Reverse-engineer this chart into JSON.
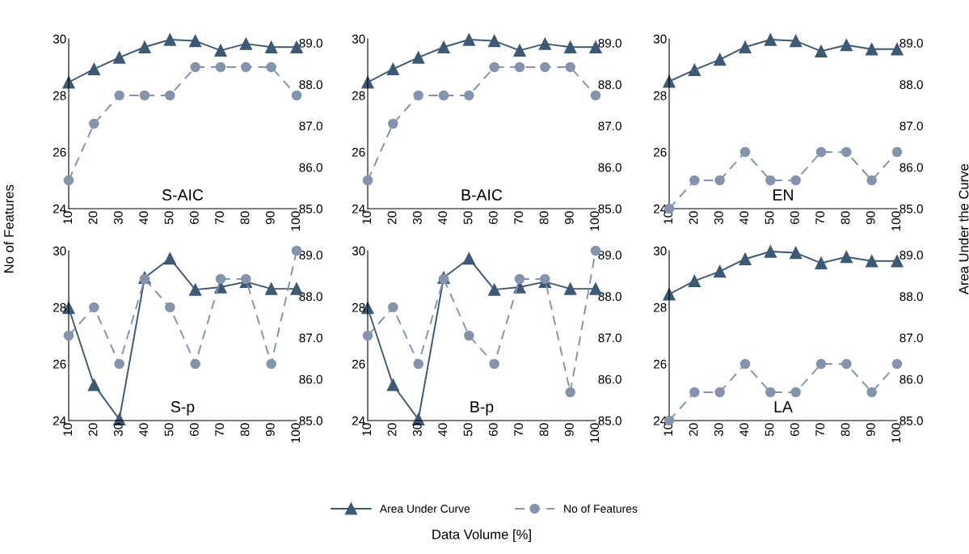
{
  "chart_data": [
    {
      "type": "line",
      "categories": [
        "10",
        "20",
        "30",
        "40",
        "50",
        "60",
        "70",
        "80",
        "90",
        "100"
      ],
      "ylim": [
        24,
        30
      ],
      "yticks": [
        24,
        26,
        28,
        30
      ],
      "y2lim": [
        85.0,
        89.1
      ],
      "y2ticks": [
        {
          "value": 85,
          "label": "85.0"
        },
        {
          "value": 86,
          "label": "86.0"
        },
        {
          "value": 87,
          "label": "87.0"
        },
        {
          "value": 88,
          "label": "88.0"
        },
        {
          "value": 89,
          "label": "89.0"
        }
      ],
      "annotations": [
        "S-AIC"
      ],
      "ylabel": "No of Features",
      "legend": "bottom",
      "grid": false,
      "series": [
        {
          "name": "Area Under Curve",
          "color": "#3d5a75",
          "axis": "y2",
          "marker": "triangle",
          "line_style": "solid",
          "values": [
            88.05,
            88.37,
            88.65,
            88.9,
            89.08,
            89.05,
            88.82,
            88.98,
            88.9,
            88.9
          ]
        },
        {
          "name": "No of Features",
          "color": "#8494ad",
          "marker": "circle",
          "line_style": "dashed",
          "values": [
            25,
            27,
            28,
            28,
            28,
            29,
            29,
            29,
            29,
            28
          ]
        }
      ]
    },
    {
      "type": "line",
      "categories": [
        "10",
        "20",
        "30",
        "40",
        "50",
        "60",
        "70",
        "80",
        "90",
        "100"
      ],
      "ylim": [
        24,
        30
      ],
      "yticks": [
        24,
        26,
        28,
        30
      ],
      "y2lim": [
        85.0,
        89.1
      ],
      "y2ticks": [
        {
          "value": 85,
          "label": "85.0"
        },
        {
          "value": 86,
          "label": "86.0"
        },
        {
          "value": 87,
          "label": "87.0"
        },
        {
          "value": 88,
          "label": "88.0"
        },
        {
          "value": 89,
          "label": "89.0"
        }
      ],
      "annotations": [
        "B-AIC"
      ],
      "grid": false,
      "series": [
        {
          "color": "#3d5a75",
          "axis": "y2",
          "marker": "triangle",
          "line_style": "solid",
          "values": [
            88.05,
            88.37,
            88.65,
            88.9,
            89.08,
            89.05,
            88.82,
            88.98,
            88.9,
            88.9
          ]
        },
        {
          "color": "#8494ad",
          "marker": "circle",
          "line_style": "dashed",
          "values": [
            25,
            27,
            28,
            28,
            28,
            29,
            29,
            29,
            29,
            28
          ]
        }
      ]
    },
    {
      "type": "line",
      "categories": [
        "10",
        "20",
        "30",
        "40",
        "50",
        "60",
        "70",
        "80",
        "90",
        "100"
      ],
      "ylim": [
        24,
        30
      ],
      "yticks": [
        24,
        26,
        28,
        30
      ],
      "y2lim": [
        85.0,
        89.1
      ],
      "y2ticks": [
        {
          "value": 85,
          "label": "85.0"
        },
        {
          "value": 86,
          "label": "86.0"
        },
        {
          "value": 87,
          "label": "87.0"
        },
        {
          "value": 88,
          "label": "88.0"
        },
        {
          "value": 89,
          "label": "89.0"
        }
      ],
      "annotations": [
        "EN"
      ],
      "y2label": "Area Under the Curve",
      "grid": false,
      "series": [
        {
          "color": "#3d5a75",
          "axis": "y2",
          "marker": "triangle",
          "line_style": "solid",
          "values": [
            88.07,
            88.35,
            88.6,
            88.9,
            89.08,
            89.05,
            88.8,
            88.95,
            88.85,
            88.85
          ]
        },
        {
          "color": "#8494ad",
          "marker": "circle",
          "line_style": "dashed",
          "values": [
            24,
            25,
            25,
            26,
            25,
            25,
            26,
            26,
            25,
            26
          ]
        }
      ]
    },
    {
      "type": "line",
      "categories": [
        "10",
        "20",
        "30",
        "40",
        "50",
        "60",
        "70",
        "80",
        "90",
        "100"
      ],
      "ylim": [
        24,
        30
      ],
      "yticks": [
        24,
        26,
        28,
        30
      ],
      "y2lim": [
        85.0,
        89.1
      ],
      "y2ticks": [
        {
          "value": 85,
          "label": "85.0"
        },
        {
          "value": 86,
          "label": "86.0"
        },
        {
          "value": 87,
          "label": "87.0"
        },
        {
          "value": 88,
          "label": "88.0"
        },
        {
          "value": 89,
          "label": "89.0"
        }
      ],
      "annotations": [
        "S-p"
      ],
      "grid": false,
      "series": [
        {
          "color": "#3d5a75",
          "axis": "y2",
          "marker": "triangle",
          "line_style": "solid",
          "values": [
            87.72,
            85.86,
            85.03,
            88.45,
            88.91,
            88.16,
            88.22,
            88.35,
            88.18,
            88.18
          ]
        },
        {
          "color": "#8494ad",
          "marker": "circle",
          "line_style": "dashed",
          "values": [
            27,
            28,
            26,
            29,
            28,
            26,
            29,
            29,
            26,
            30
          ]
        }
      ]
    },
    {
      "type": "line",
      "categories": [
        "10",
        "20",
        "30",
        "40",
        "50",
        "60",
        "70",
        "80",
        "90",
        "100"
      ],
      "ylim": [
        24,
        30
      ],
      "yticks": [
        24,
        26,
        28,
        30
      ],
      "y2lim": [
        85.0,
        89.1
      ],
      "y2ticks": [
        {
          "value": 85,
          "label": "85.0"
        },
        {
          "value": 86,
          "label": "86.0"
        },
        {
          "value": 87,
          "label": "87.0"
        },
        {
          "value": 88,
          "label": "88.0"
        },
        {
          "value": 89,
          "label": "89.0"
        }
      ],
      "annotations": [
        "B-p"
      ],
      "xlabel": "Data Volume [%]",
      "grid": false,
      "series": [
        {
          "color": "#3d5a75",
          "axis": "y2",
          "marker": "triangle",
          "line_style": "solid",
          "values": [
            87.72,
            85.86,
            85.03,
            88.45,
            88.91,
            88.16,
            88.22,
            88.35,
            88.18,
            88.18
          ]
        },
        {
          "color": "#8494ad",
          "marker": "circle",
          "line_style": "dashed",
          "values": [
            27,
            28,
            26,
            29,
            27,
            26,
            29,
            29,
            25,
            30
          ]
        }
      ]
    },
    {
      "type": "line",
      "categories": [
        "10",
        "20",
        "30",
        "40",
        "50",
        "60",
        "70",
        "80",
        "90",
        "100"
      ],
      "ylim": [
        24,
        30
      ],
      "yticks": [
        24,
        26,
        28,
        30
      ],
      "y2lim": [
        85.0,
        89.1
      ],
      "y2ticks": [
        {
          "value": 85,
          "label": "85.0"
        },
        {
          "value": 86,
          "label": "86.0"
        },
        {
          "value": 87,
          "label": "87.0"
        },
        {
          "value": 88,
          "label": "88.0"
        },
        {
          "value": 89,
          "label": "89.0"
        }
      ],
      "annotations": [
        "LA"
      ],
      "grid": false,
      "series": [
        {
          "color": "#3d5a75",
          "axis": "y2",
          "marker": "triangle",
          "line_style": "solid",
          "values": [
            88.05,
            88.37,
            88.6,
            88.9,
            89.08,
            89.05,
            88.8,
            88.95,
            88.85,
            88.85
          ]
        },
        {
          "color": "#8494ad",
          "marker": "circle",
          "line_style": "dashed",
          "values": [
            24,
            25,
            25,
            26,
            25,
            25,
            26,
            26,
            25,
            26
          ]
        }
      ]
    }
  ]
}
